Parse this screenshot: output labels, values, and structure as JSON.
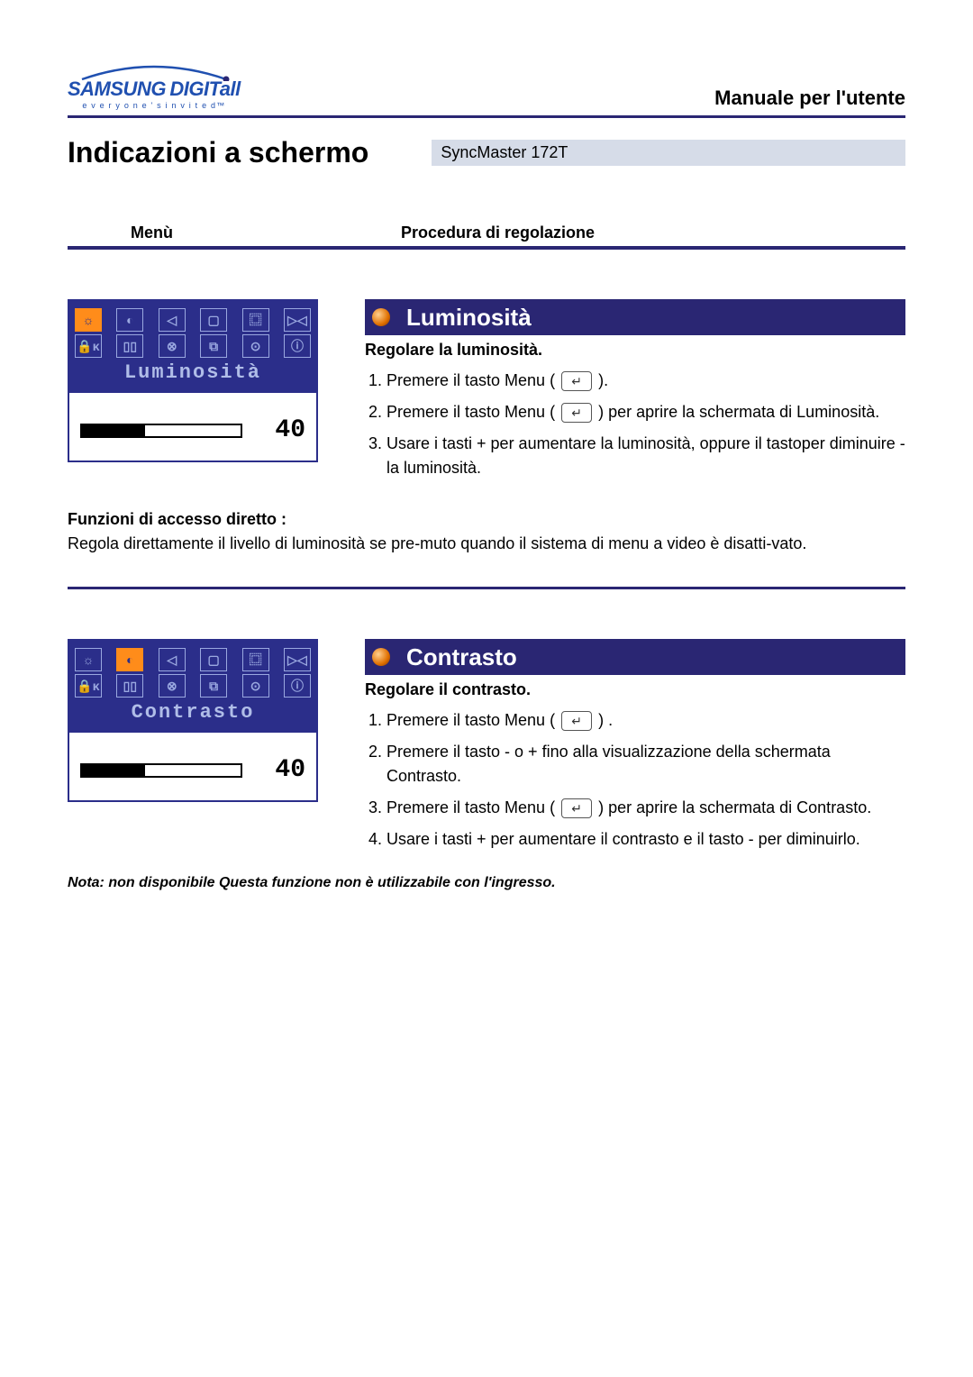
{
  "header": {
    "brand_main": "SAMSUNG",
    "brand_sub": "DIGITall",
    "brand_tagline": "e v e r y o n e ' s   i n v i t e d™",
    "manual_title": "Manuale per l'utente",
    "page_title": "Indicazioni a schermo",
    "model_label": "SyncMaster 172T",
    "tab_menu": "Menù",
    "tab_procedure": "Procedura di regolazione",
    "brand_color": "#2050b0",
    "rule_color": "#2a2673"
  },
  "sections": [
    {
      "osd": {
        "label": "Luminosità",
        "selected_index": 0,
        "row1_glyphs": [
          "☼",
          "◐",
          "◁",
          "▢",
          "⿴",
          "▷◁"
        ],
        "row2_glyphs": [
          "🔒ᴋ",
          "▯▯",
          "⊗",
          "⧉",
          "⊙",
          "ⓘ"
        ],
        "value": 40,
        "fill_percent": 40,
        "bg_color": "#2b2e8a",
        "label_color": "#b0bde8",
        "icon_border": "#9aa8e0",
        "sel_color": "#ff8c1a"
      },
      "title": "Luminosità",
      "subtitle": "Regolare la luminosità.",
      "steps": [
        "Premere il tasto Menu ( [ICON] ).",
        "Premere il tasto Menu ( [ICON] ) per aprire la schermata di Luminosità.",
        "Usare i tasti + per aumentare la luminosità, oppure il tastoper diminuire - la luminosità."
      ],
      "direct_access_title": "Funzioni di accesso diretto :",
      "direct_access_text": "Regola direttamente il livello di luminosità se pre-muto quando il sistema di menu a video è disatti-vato.",
      "note": null
    },
    {
      "osd": {
        "label": "Contrasto",
        "selected_index": 1,
        "row1_glyphs": [
          "☼",
          "◐",
          "◁",
          "▢",
          "⿴",
          "▷◁"
        ],
        "row2_glyphs": [
          "🔒ᴋ",
          "▯▯",
          "⊗",
          "⧉",
          "⊙",
          "ⓘ"
        ],
        "value": 40,
        "fill_percent": 40,
        "bg_color": "#2b2e8a",
        "label_color": "#b0bde8",
        "icon_border": "#9aa8e0",
        "sel_color": "#ff8c1a"
      },
      "title": "Contrasto",
      "subtitle": "Regolare il contrasto.",
      "steps": [
        "Premere il tasto Menu ( [ICON] ) .",
        "Premere il tasto - o + fino alla visualizzazione della schermata Contrasto.",
        "Premere il tasto Menu ( [ICON] ) per aprire la schermata di Contrasto.",
        "Usare i tasti + per aumentare il contrasto e il tasto - per diminuirlo."
      ],
      "direct_access_title": null,
      "direct_access_text": null,
      "note": "Nota: non disponibile Questa funzione non è utilizzabile con l'ingresso."
    }
  ]
}
